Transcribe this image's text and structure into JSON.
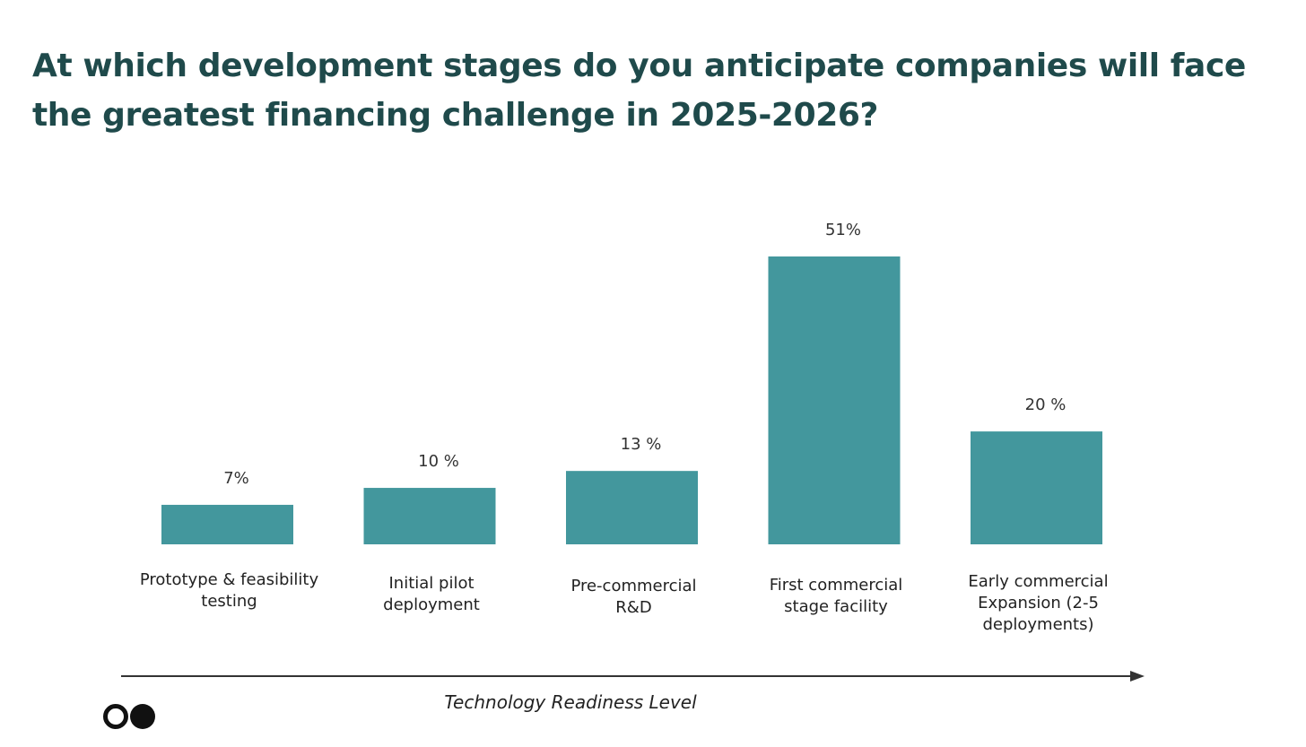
{
  "chart_data": {
    "type": "bar",
    "title": "At which development stages do you anticipate companies will face the greatest financing challenge in 2025-2026?",
    "categories": [
      [
        "Prototype & feasibility",
        "testing"
      ],
      [
        "Initial pilot",
        "deployment"
      ],
      [
        "Pre-commercial",
        "R&D"
      ],
      [
        "First commercial",
        "stage facility"
      ],
      [
        "Early commercial",
        "Expansion (2-5",
        "deployments)"
      ]
    ],
    "values": [
      7,
      10,
      13,
      51,
      20
    ],
    "value_labels": [
      "7%",
      "10 %",
      "13 %",
      "51%",
      "20 %"
    ],
    "xlabel": "Technology Readiness Level",
    "ylabel": "",
    "ylim": [
      0,
      51
    ],
    "bar_color": "#43979d",
    "grid": false
  },
  "colors": {
    "title": "#1f4a4b",
    "axis": "#333333"
  },
  "logo": {
    "icon": "two-dots-logo-icon"
  }
}
